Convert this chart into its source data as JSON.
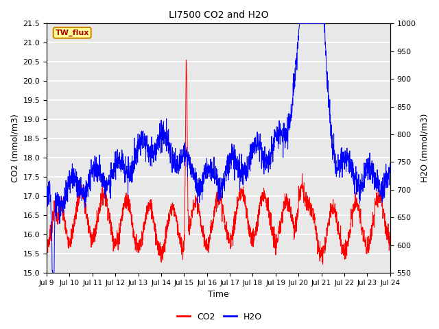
{
  "title": "LI7500 CO2 and H2O",
  "xlabel": "Time",
  "ylabel_left": "CO2 (mmol/m3)",
  "ylabel_right": "H2O (mmol/m3)",
  "co2_ylim": [
    15.0,
    21.5
  ],
  "h2o_ylim": [
    550,
    1000
  ],
  "co2_yticks": [
    15.0,
    15.5,
    16.0,
    16.5,
    17.0,
    17.5,
    18.0,
    18.5,
    19.0,
    19.5,
    20.0,
    20.5,
    21.0,
    21.5
  ],
  "h2o_yticks": [
    550,
    600,
    650,
    700,
    750,
    800,
    850,
    900,
    950,
    1000
  ],
  "xtick_labels": [
    "Jul 9",
    "Jul 10",
    "Jul 11",
    "Jul 12",
    "Jul 13",
    "Jul 14",
    "Jul 15",
    "Jul 16",
    "Jul 17",
    "Jul 18",
    "Jul 19",
    "Jul 20",
    "Jul 21",
    "Jul 22",
    "Jul 23",
    "Jul 24"
  ],
  "co2_color": "#ff0000",
  "h2o_color": "#0000ff",
  "annotation_text": "TW_flux",
  "annotation_bg": "#ffff99",
  "annotation_border": "#cc8800",
  "plot_bg": "#e8e8e8",
  "grid_color": "#ffffff",
  "fig_bg": "#ffffff",
  "figsize": [
    6.4,
    4.8
  ],
  "dpi": 100
}
